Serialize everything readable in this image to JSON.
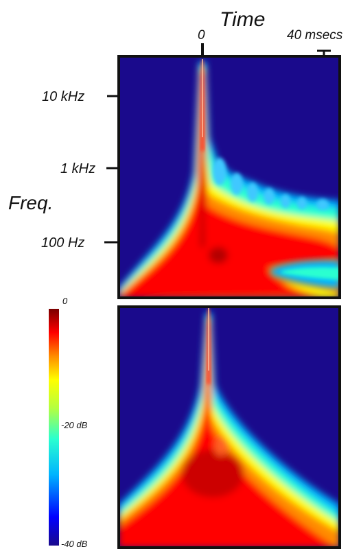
{
  "chart_data": [
    {
      "type": "heatmap",
      "title": "",
      "xlabel": "Time",
      "ylabel": "Freq.",
      "x_ticks": [
        {
          "value": 0,
          "label": "0"
        },
        {
          "value": 40,
          "label": "40 msecs"
        }
      ],
      "x_range_ms": [
        -40,
        65
      ],
      "y_scale": "log",
      "y_ticks": [
        {
          "value": 10000,
          "label": "10 kHz"
        },
        {
          "value": 1000,
          "label": "1 kHz"
        },
        {
          "value": 100,
          "label": "100 Hz"
        }
      ],
      "y_range_hz": [
        20,
        40000
      ],
      "colorbar": {
        "colormap": "jet",
        "min_db": -40,
        "max_db": 0,
        "tick_labels": [
          {
            "value": 0,
            "label": "0"
          },
          {
            "value": -20,
            "label": "-20 dB"
          },
          {
            "value": -40,
            "label": "-40 dB"
          }
        ]
      },
      "panels": [
        {
          "position": "top",
          "description": "narrow spike at 0 ms with long low-frequency ridge near 100 Hz extending to the right"
        },
        {
          "position": "bottom",
          "description": "narrow spike at 0 ms with broad symmetric spread toward low frequencies"
        }
      ]
    }
  ],
  "labels": {
    "time": "Time",
    "freq": "Freq.",
    "t0": "0",
    "t40": "40 msecs",
    "f10k": "10 kHz",
    "f1k": "1 kHz",
    "f100": "100 Hz",
    "cb0": "0",
    "cb20": "-20 dB",
    "cb40": "-40 dB"
  },
  "colors": {
    "background_panel": "#1a0a8c",
    "peak": "#7a0000",
    "frame": "#111111"
  }
}
